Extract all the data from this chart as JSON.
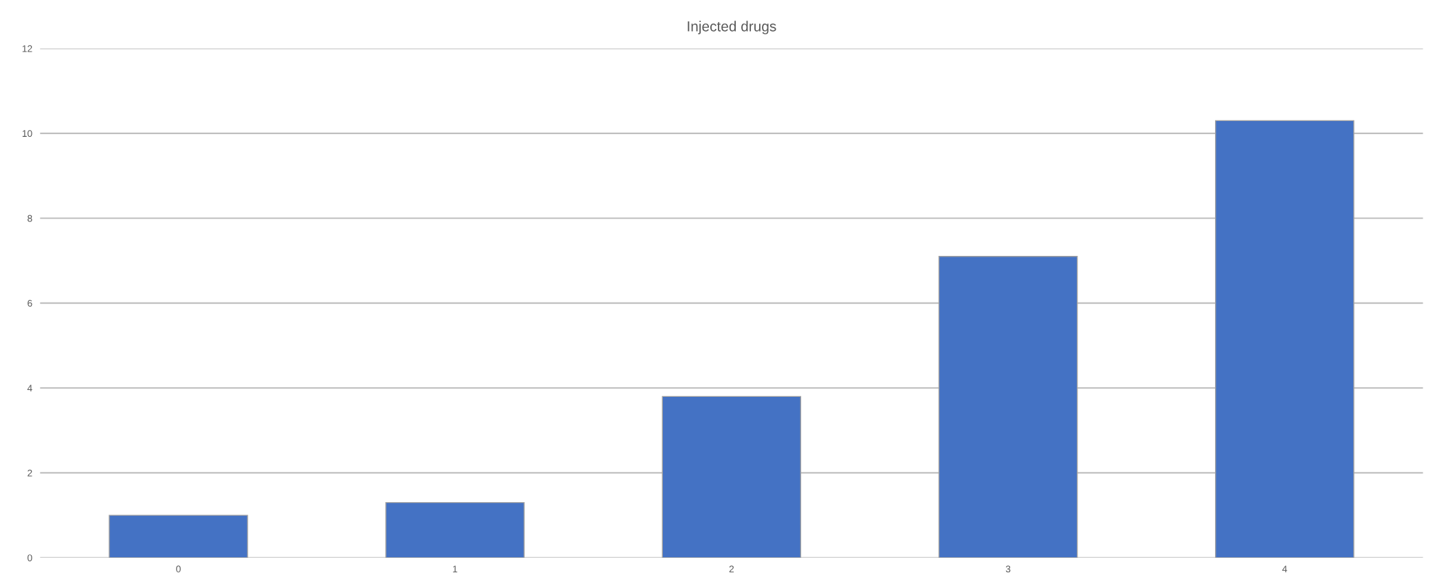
{
  "chart_data": {
    "type": "bar",
    "title": "Injected drugs",
    "categories": [
      "0",
      "1",
      "2",
      "3",
      "4"
    ],
    "values": [
      1.0,
      1.3,
      3.8,
      7.1,
      10.3
    ],
    "color": "#4472c4",
    "ylim": [
      0,
      12
    ],
    "yticks": [
      0,
      2,
      4,
      6,
      8,
      10,
      12
    ],
    "grid": "y",
    "legend": false
  }
}
